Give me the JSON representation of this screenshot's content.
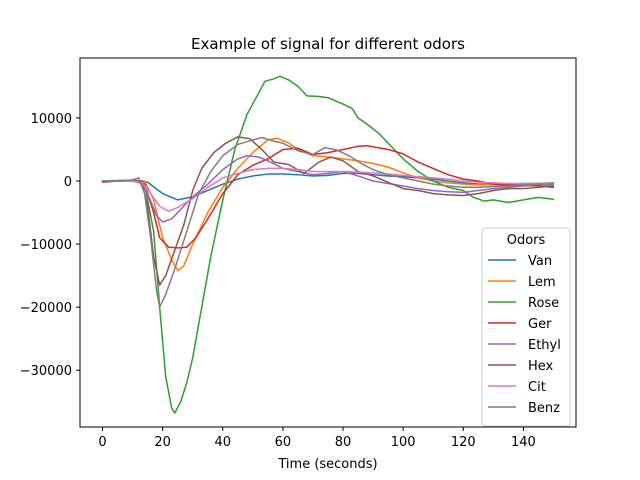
{
  "chart_data": {
    "type": "line",
    "title": "Example of signal for different odors",
    "xlabel": "Time (seconds)",
    "ylabel": "",
    "xlim": [
      -7.5,
      157.5
    ],
    "ylim": [
      -39000,
      19500
    ],
    "xticks": [
      0,
      20,
      40,
      60,
      80,
      100,
      120,
      140
    ],
    "yticks": [
      -30000,
      -20000,
      -10000,
      0,
      10000
    ],
    "ytick_labels": [
      "−30000",
      "−20000",
      "−10000",
      "0",
      "10000"
    ],
    "legend": {
      "title": "Odors",
      "placement": "lower right"
    },
    "series": [
      {
        "name": "Van",
        "color": "#1f77b4",
        "points": [
          [
            0,
            0
          ],
          [
            5,
            0
          ],
          [
            10,
            0
          ],
          [
            15,
            -200
          ],
          [
            20,
            -2000
          ],
          [
            25,
            -3000
          ],
          [
            30,
            -2500
          ],
          [
            35,
            -1500
          ],
          [
            40,
            -500
          ],
          [
            45,
            300
          ],
          [
            50,
            800
          ],
          [
            55,
            1100
          ],
          [
            60,
            1100
          ],
          [
            65,
            1000
          ],
          [
            70,
            800
          ],
          [
            75,
            900
          ],
          [
            80,
            1200
          ],
          [
            85,
            1200
          ],
          [
            90,
            1000
          ],
          [
            95,
            800
          ],
          [
            100,
            700
          ],
          [
            105,
            500
          ],
          [
            110,
            300
          ],
          [
            115,
            0
          ],
          [
            120,
            -300
          ],
          [
            125,
            -500
          ],
          [
            130,
            -500
          ],
          [
            135,
            -500
          ],
          [
            140,
            -400
          ],
          [
            145,
            -400
          ],
          [
            150,
            -300
          ]
        ]
      },
      {
        "name": "Lem",
        "color": "#ff7f0e",
        "points": [
          [
            0,
            0
          ],
          [
            5,
            100
          ],
          [
            10,
            100
          ],
          [
            14,
            0
          ],
          [
            17,
            -3000
          ],
          [
            20,
            -9000
          ],
          [
            23,
            -12500
          ],
          [
            25,
            -14200
          ],
          [
            27,
            -13500
          ],
          [
            30,
            -10000
          ],
          [
            35,
            -5000
          ],
          [
            40,
            -1000
          ],
          [
            45,
            2000
          ],
          [
            50,
            4500
          ],
          [
            55,
            6500
          ],
          [
            58,
            6800
          ],
          [
            62,
            6000
          ],
          [
            65,
            5000
          ],
          [
            70,
            4000
          ],
          [
            75,
            3800
          ],
          [
            80,
            3500
          ],
          [
            85,
            3200
          ],
          [
            90,
            2800
          ],
          [
            95,
            2200
          ],
          [
            100,
            1300
          ],
          [
            105,
            500
          ],
          [
            110,
            0
          ],
          [
            115,
            -300
          ],
          [
            120,
            -500
          ],
          [
            125,
            -600
          ],
          [
            130,
            -600
          ],
          [
            135,
            -800
          ],
          [
            140,
            -800
          ],
          [
            145,
            -700
          ],
          [
            150,
            -700
          ]
        ]
      },
      {
        "name": "Rose",
        "color": "#2ca02c",
        "points": [
          [
            0,
            0
          ],
          [
            5,
            0
          ],
          [
            10,
            0
          ],
          [
            14,
            -500
          ],
          [
            17,
            -8000
          ],
          [
            19,
            -20000
          ],
          [
            21,
            -31000
          ],
          [
            23,
            -36000
          ],
          [
            24,
            -36800
          ],
          [
            26,
            -35000
          ],
          [
            28,
            -32000
          ],
          [
            30,
            -28000
          ],
          [
            33,
            -20000
          ],
          [
            36,
            -12000
          ],
          [
            40,
            -3000
          ],
          [
            44,
            5000
          ],
          [
            48,
            10500
          ],
          [
            52,
            14000
          ],
          [
            54,
            15800
          ],
          [
            57,
            16200
          ],
          [
            59,
            16600
          ],
          [
            62,
            16000
          ],
          [
            65,
            15000
          ],
          [
            68,
            13500
          ],
          [
            72,
            13400
          ],
          [
            75,
            13200
          ],
          [
            80,
            12200
          ],
          [
            83,
            11500
          ],
          [
            85,
            10000
          ],
          [
            88,
            9000
          ],
          [
            92,
            7500
          ],
          [
            95,
            6000
          ],
          [
            100,
            3500
          ],
          [
            105,
            1500
          ],
          [
            110,
            0
          ],
          [
            115,
            -1000
          ],
          [
            120,
            -1500
          ],
          [
            123,
            -2500
          ],
          [
            127,
            -3200
          ],
          [
            130,
            -3000
          ],
          [
            135,
            -3400
          ],
          [
            140,
            -3000
          ],
          [
            145,
            -2600
          ],
          [
            150,
            -2900
          ]
        ]
      },
      {
        "name": "Ger",
        "color": "#d62728",
        "points": [
          [
            0,
            0
          ],
          [
            5,
            0
          ],
          [
            10,
            100
          ],
          [
            14,
            -500
          ],
          [
            17,
            -5000
          ],
          [
            19,
            -9000
          ],
          [
            22,
            -10500
          ],
          [
            25,
            -10600
          ],
          [
            28,
            -10500
          ],
          [
            31,
            -9000
          ],
          [
            35,
            -6000
          ],
          [
            40,
            -2000
          ],
          [
            45,
            1000
          ],
          [
            50,
            2500
          ],
          [
            55,
            3500
          ],
          [
            60,
            5000
          ],
          [
            65,
            5200
          ],
          [
            70,
            4200
          ],
          [
            75,
            4500
          ],
          [
            80,
            5000
          ],
          [
            85,
            5500
          ],
          [
            88,
            5600
          ],
          [
            95,
            5000
          ],
          [
            100,
            4300
          ],
          [
            105,
            3000
          ],
          [
            110,
            2000
          ],
          [
            115,
            1000
          ],
          [
            120,
            300
          ],
          [
            125,
            0
          ],
          [
            130,
            -500
          ],
          [
            135,
            -600
          ],
          [
            140,
            -700
          ],
          [
            145,
            -800
          ],
          [
            150,
            -1000
          ]
        ]
      },
      {
        "name": "Ethyl",
        "color": "#9467bd",
        "points": [
          [
            0,
            0
          ],
          [
            5,
            0
          ],
          [
            10,
            0
          ],
          [
            13,
            -200
          ],
          [
            15,
            -2000
          ],
          [
            18,
            -5500
          ],
          [
            20,
            -6500
          ],
          [
            23,
            -6000
          ],
          [
            26,
            -4500
          ],
          [
            30,
            -2500
          ],
          [
            35,
            -500
          ],
          [
            40,
            1800
          ],
          [
            45,
            3500
          ],
          [
            48,
            4000
          ],
          [
            52,
            3800
          ],
          [
            55,
            3200
          ],
          [
            60,
            2000
          ],
          [
            65,
            1500
          ],
          [
            70,
            1000
          ],
          [
            75,
            1200
          ],
          [
            80,
            1500
          ],
          [
            85,
            800
          ],
          [
            90,
            0
          ],
          [
            95,
            -400
          ],
          [
            100,
            -800
          ],
          [
            105,
            -1200
          ],
          [
            110,
            -1500
          ],
          [
            115,
            -1700
          ],
          [
            120,
            -1800
          ],
          [
            125,
            -1500
          ],
          [
            130,
            -1200
          ],
          [
            135,
            -1000
          ],
          [
            140,
            -800
          ],
          [
            145,
            -500
          ],
          [
            150,
            -400
          ]
        ]
      },
      {
        "name": "Hex",
        "color": "#8c564b",
        "points": [
          [
            0,
            -200
          ],
          [
            5,
            0
          ],
          [
            10,
            100
          ],
          [
            13,
            0
          ],
          [
            15,
            -4000
          ],
          [
            17,
            -12000
          ],
          [
            19,
            -16500
          ],
          [
            21,
            -15000
          ],
          [
            24,
            -11000
          ],
          [
            27,
            -7000
          ],
          [
            30,
            -1500
          ],
          [
            33,
            2000
          ],
          [
            37,
            4500
          ],
          [
            41,
            6000
          ],
          [
            45,
            7000
          ],
          [
            49,
            6700
          ],
          [
            53,
            5000
          ],
          [
            57,
            3000
          ],
          [
            62,
            2600
          ],
          [
            67,
            1200
          ],
          [
            72,
            3000
          ],
          [
            76,
            3800
          ],
          [
            80,
            3200
          ],
          [
            85,
            1500
          ],
          [
            90,
            800
          ],
          [
            95,
            -200
          ],
          [
            100,
            -1200
          ],
          [
            105,
            -1500
          ],
          [
            110,
            -2000
          ],
          [
            115,
            -2200
          ],
          [
            120,
            -2300
          ],
          [
            125,
            -2000
          ],
          [
            130,
            -1500
          ],
          [
            135,
            -1200
          ],
          [
            140,
            -1200
          ],
          [
            145,
            -1000
          ],
          [
            150,
            -800
          ]
        ]
      },
      {
        "name": "Cit",
        "color": "#e377c2",
        "points": [
          [
            0,
            0
          ],
          [
            5,
            0
          ],
          [
            10,
            0
          ],
          [
            13,
            -200
          ],
          [
            16,
            -2000
          ],
          [
            19,
            -4000
          ],
          [
            22,
            -4800
          ],
          [
            25,
            -4200
          ],
          [
            30,
            -2800
          ],
          [
            35,
            -1000
          ],
          [
            40,
            500
          ],
          [
            45,
            1200
          ],
          [
            50,
            1800
          ],
          [
            55,
            2000
          ],
          [
            60,
            2000
          ],
          [
            65,
            1800
          ],
          [
            70,
            1500
          ],
          [
            75,
            1500
          ],
          [
            80,
            1500
          ],
          [
            85,
            1400
          ],
          [
            90,
            1300
          ],
          [
            95,
            1100
          ],
          [
            100,
            900
          ],
          [
            105,
            700
          ],
          [
            110,
            500
          ],
          [
            115,
            300
          ],
          [
            120,
            0
          ],
          [
            125,
            -200
          ],
          [
            130,
            -300
          ],
          [
            135,
            -400
          ],
          [
            140,
            -400
          ],
          [
            145,
            -400
          ],
          [
            150,
            -400
          ]
        ]
      },
      {
        "name": "Benz",
        "color": "#7f7f7f",
        "points": [
          [
            0,
            0
          ],
          [
            5,
            0
          ],
          [
            10,
            200
          ],
          [
            12,
            500
          ],
          [
            14,
            -2000
          ],
          [
            16,
            -9000
          ],
          [
            18,
            -17500
          ],
          [
            19,
            -20000
          ],
          [
            21,
            -18000
          ],
          [
            24,
            -14000
          ],
          [
            28,
            -8000
          ],
          [
            32,
            -2000
          ],
          [
            36,
            1500
          ],
          [
            40,
            4000
          ],
          [
            45,
            5800
          ],
          [
            50,
            6500
          ],
          [
            53,
            6900
          ],
          [
            57,
            6300
          ],
          [
            60,
            6000
          ],
          [
            65,
            4800
          ],
          [
            70,
            4200
          ],
          [
            74,
            5300
          ],
          [
            78,
            4900
          ],
          [
            82,
            4000
          ],
          [
            86,
            2800
          ],
          [
            90,
            1800
          ],
          [
            95,
            1000
          ],
          [
            100,
            500
          ],
          [
            105,
            0
          ],
          [
            110,
            -500
          ],
          [
            115,
            -800
          ],
          [
            120,
            -1000
          ],
          [
            125,
            -1000
          ],
          [
            130,
            -900
          ],
          [
            135,
            -800
          ],
          [
            140,
            -600
          ],
          [
            145,
            -500
          ],
          [
            150,
            -500
          ]
        ]
      }
    ]
  }
}
